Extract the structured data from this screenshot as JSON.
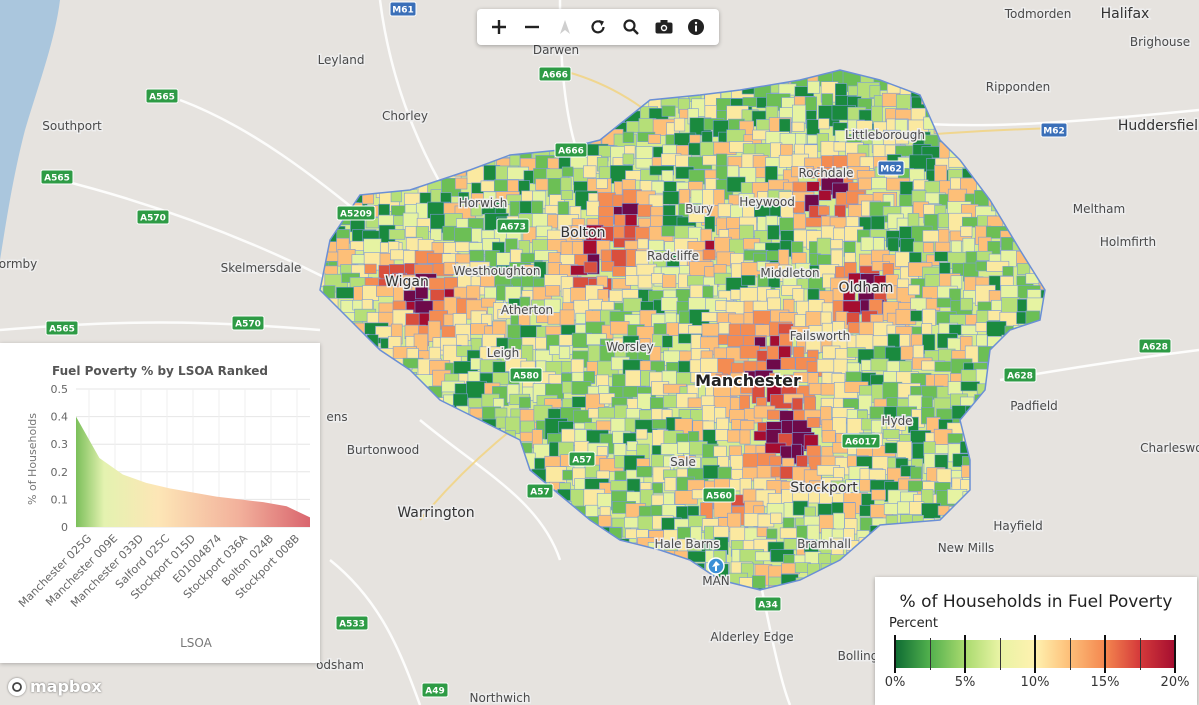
{
  "toolbar": {
    "zoom_in": "zoom-in",
    "zoom_out": "zoom-out",
    "compass": "compass",
    "reset": "reset-view",
    "search": "search",
    "screenshot": "camera",
    "info": "info"
  },
  "map": {
    "places": [
      {
        "name": "Halifax",
        "cls": "place-big"
      },
      {
        "name": "Todmorden",
        "cls": "place"
      },
      {
        "name": "Brighouse",
        "cls": "place"
      },
      {
        "name": "Darwen",
        "cls": "place"
      },
      {
        "name": "Leyland",
        "cls": "place"
      },
      {
        "name": "Ripponden",
        "cls": "place"
      },
      {
        "name": "Chorley",
        "cls": "place"
      },
      {
        "name": "Littleborough",
        "cls": "place"
      },
      {
        "name": "Huddersfiel",
        "cls": "place-big"
      },
      {
        "name": "Southport",
        "cls": "place"
      },
      {
        "name": "Rochdale",
        "cls": "place"
      },
      {
        "name": "Horwich",
        "cls": "place"
      },
      {
        "name": "Bury",
        "cls": "place"
      },
      {
        "name": "Heywood",
        "cls": "place"
      },
      {
        "name": "Meltham",
        "cls": "place"
      },
      {
        "name": "Holmfirth",
        "cls": "place"
      },
      {
        "name": "Bolton",
        "cls": "place-big"
      },
      {
        "name": "ormby",
        "cls": "place"
      },
      {
        "name": "Skelmersdale",
        "cls": "place"
      },
      {
        "name": "Wigan",
        "cls": "place-big"
      },
      {
        "name": "Westhoughton",
        "cls": "place"
      },
      {
        "name": "Radcliffe",
        "cls": "place"
      },
      {
        "name": "Middleton",
        "cls": "place"
      },
      {
        "name": "Oldham",
        "cls": "place-big"
      },
      {
        "name": "Atherton",
        "cls": "place"
      },
      {
        "name": "Failsworth",
        "cls": "place"
      },
      {
        "name": "Leigh",
        "cls": "place"
      },
      {
        "name": "Worsley",
        "cls": "place"
      },
      {
        "name": "Manchester",
        "cls": "place-main"
      },
      {
        "name": "Padfield",
        "cls": "place"
      },
      {
        "name": "ens",
        "cls": "place"
      },
      {
        "name": "Hyde",
        "cls": "place"
      },
      {
        "name": "Burtonwood",
        "cls": "place"
      },
      {
        "name": "Charlesworth",
        "cls": "place"
      },
      {
        "name": "Sale",
        "cls": "place"
      },
      {
        "name": "Stockport",
        "cls": "place-big"
      },
      {
        "name": "Warrington",
        "cls": "place-big"
      },
      {
        "name": "Hayfield",
        "cls": "place"
      },
      {
        "name": "Hale Barns",
        "cls": "place"
      },
      {
        "name": "Bramhall",
        "cls": "place"
      },
      {
        "name": "New Mills",
        "cls": "place"
      },
      {
        "name": "MAN",
        "cls": "place"
      },
      {
        "name": "Alderley Edge",
        "cls": "place"
      },
      {
        "name": "Bolling",
        "cls": "place"
      },
      {
        "name": "odsham",
        "cls": "place"
      },
      {
        "name": "Northwich",
        "cls": "place"
      }
    ],
    "shields": [
      {
        "label": "A565",
        "type": "a"
      },
      {
        "label": "A565",
        "type": "a"
      },
      {
        "label": "A570",
        "type": "a"
      },
      {
        "label": "A570",
        "type": "a"
      },
      {
        "label": "A565",
        "type": "a"
      },
      {
        "label": "A5209",
        "type": "a"
      },
      {
        "label": "A673",
        "type": "a"
      },
      {
        "label": "A666",
        "type": "a"
      },
      {
        "label": "A666",
        "type": "a"
      },
      {
        "label": "M61",
        "type": "m"
      },
      {
        "label": "M62",
        "type": "m"
      },
      {
        "label": "M62",
        "type": "m"
      },
      {
        "label": "A580",
        "type": "a"
      },
      {
        "label": "A57",
        "type": "a"
      },
      {
        "label": "A57",
        "type": "a"
      },
      {
        "label": "A560",
        "type": "a"
      },
      {
        "label": "A6017",
        "type": "a"
      },
      {
        "label": "A628",
        "type": "a"
      },
      {
        "label": "A628",
        "type": "a"
      },
      {
        "label": "A34",
        "type": "a"
      },
      {
        "label": "A533",
        "type": "a"
      },
      {
        "label": "A49",
        "type": "a"
      }
    ]
  },
  "chart_data": {
    "type": "area",
    "title": "Fuel Poverty % by LSOA Ranked",
    "xlabel": "LSOA",
    "ylabel": "% of Households",
    "ylim": [
      0,
      0.5
    ],
    "yticks": [
      0,
      0.1,
      0.2,
      0.3,
      0.4,
      0.5
    ],
    "categories": [
      "Manchester 025G",
      "Manchester 009E",
      "Manchester 033D",
      "Salford 025C",
      "Stockport 015D",
      "E01004874",
      "Stockport 036A",
      "Bolton 024B",
      "Stockport 008B"
    ],
    "x": [
      0,
      0.1,
      0.2,
      0.3,
      0.4,
      0.5,
      0.6,
      0.7,
      0.8,
      0.9,
      1.0
    ],
    "values": [
      0.4,
      0.25,
      0.19,
      0.16,
      0.14,
      0.125,
      0.11,
      0.1,
      0.09,
      0.075,
      0.035
    ],
    "grid": true
  },
  "legend": {
    "title": "% of Households in Fuel Poverty",
    "subtitle": "Percent",
    "labels": [
      "0%",
      "5%",
      "10%",
      "15%",
      "20%"
    ]
  },
  "attribution": {
    "logo_text": "mapbox"
  }
}
